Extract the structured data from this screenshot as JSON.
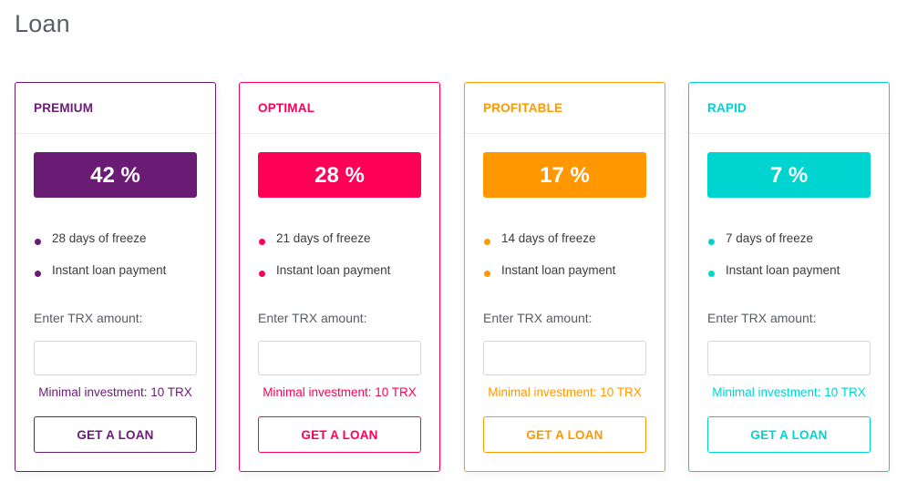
{
  "page": {
    "title": "Loan"
  },
  "cards": [
    {
      "name": "PREMIUM",
      "rate": "42 %",
      "color": "#6a1b74",
      "features": [
        "28 days of freeze",
        "Instant loan payment"
      ],
      "amount_label": "Enter TRX amount:",
      "amount_value": "",
      "amount_placeholder": "",
      "min_investment": "Minimal investment: 10 TRX",
      "button_label": "GET A LOAN"
    },
    {
      "name": "OPTIMAL",
      "rate": "28 %",
      "color": "#ff0057",
      "features": [
        "21 days of freeze",
        "Instant loan payment"
      ],
      "amount_label": "Enter TRX amount:",
      "amount_value": "",
      "amount_placeholder": "",
      "min_investment": "Minimal investment: 10 TRX",
      "button_label": "GET A LOAN"
    },
    {
      "name": "PROFITABLE",
      "rate": "17 %",
      "color": "#ff9800",
      "features": [
        "14 days of freeze",
        "Instant loan payment"
      ],
      "amount_label": "Enter TRX amount:",
      "amount_value": "",
      "amount_placeholder": "",
      "min_investment": "Minimal investment: 10 TRX",
      "button_label": "GET A LOAN"
    },
    {
      "name": "RAPID",
      "rate": "7 %",
      "color": "#00d4d0",
      "features": [
        "7 days of freeze",
        "Instant loan payment"
      ],
      "amount_label": "Enter TRX amount:",
      "amount_value": "",
      "amount_placeholder": "",
      "min_investment": "Minimal investment: 10 TRX",
      "button_label": "GET A LOAN"
    }
  ]
}
